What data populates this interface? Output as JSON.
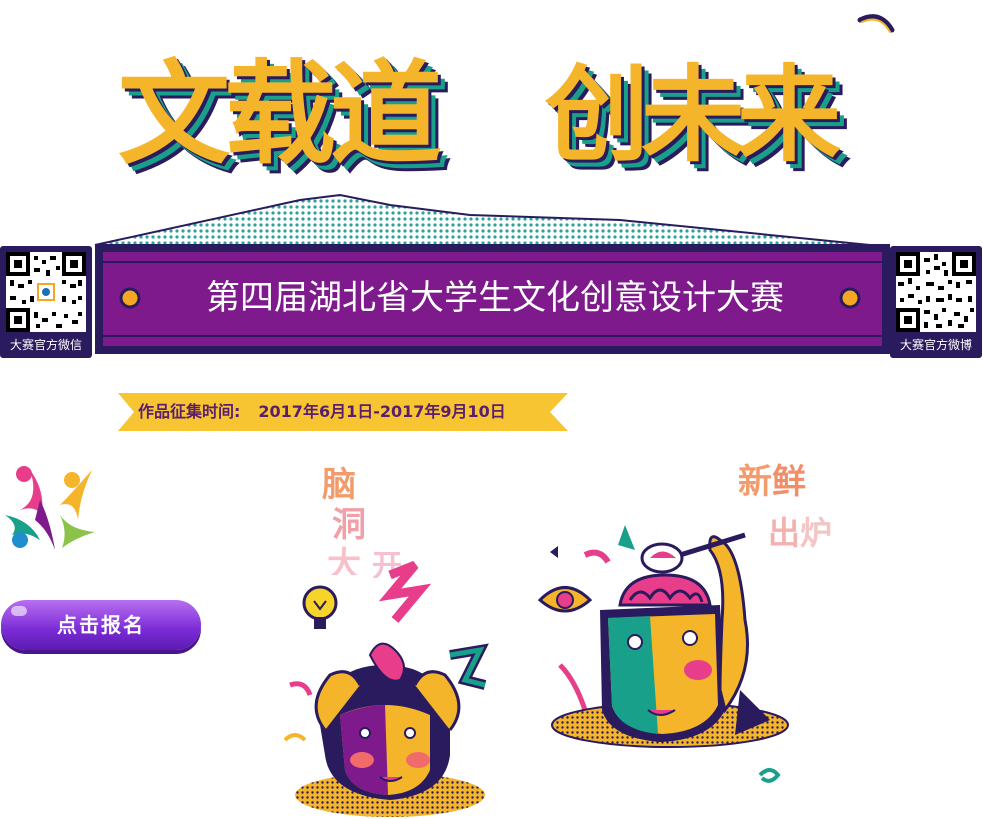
{
  "banner": {
    "title_left": "文载道",
    "title_right": "创未来",
    "ribbon_text": "第四届湖北省大学生文化创意设计大赛",
    "qr_left_label": "大赛官方微信",
    "qr_right_label": "大赛官方微博"
  },
  "submission": {
    "label": "作品征集时间:",
    "dates": "2017年6月1日-2017年9月10日"
  },
  "register_button": {
    "label": "点击报名"
  },
  "illustrations": {
    "left_caption": [
      "脑",
      "洞",
      "大",
      "开"
    ],
    "right_caption": [
      "新",
      "鲜",
      "出",
      "炉"
    ]
  },
  "colors": {
    "purple": "#7e1a8c",
    "navy": "#2a1a5e",
    "yellow": "#f5b52a",
    "teal": "#19a08a",
    "pink": "#e83d8a"
  }
}
